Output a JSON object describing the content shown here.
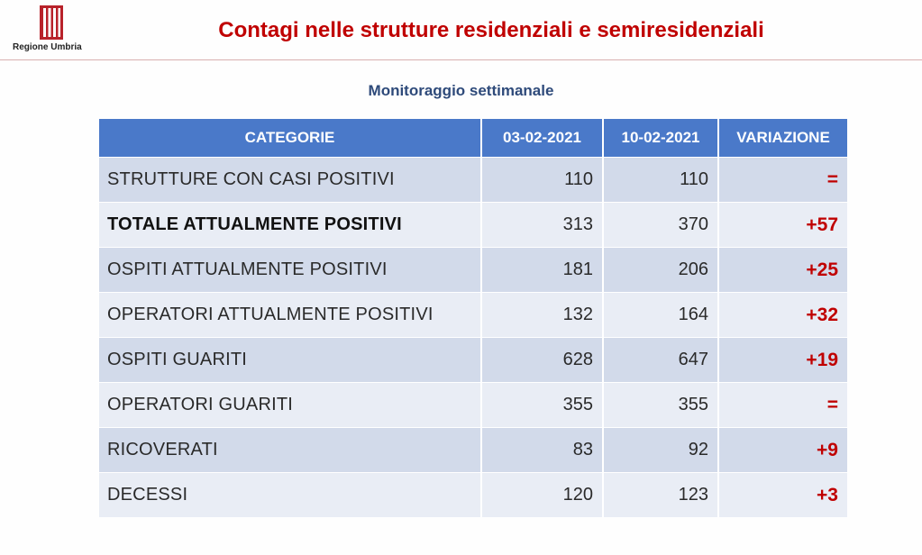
{
  "header": {
    "logo_text": "Regione Umbria",
    "title": "Contagi nelle strutture residenziali e semiresidenziali",
    "subtitle": "Monitoraggio settimanale"
  },
  "colors": {
    "title": "#c00000",
    "header_bg": "#4a79c9",
    "row_dark": "#d2daea",
    "row_light": "#e9edf5",
    "variation": "#c00000",
    "subtitle": "#2e4a7a"
  },
  "table": {
    "columns": [
      "CATEGORIE",
      "03-02-2021",
      "10-02-2021",
      "VARIAZIONE"
    ],
    "rows": [
      {
        "category": "STRUTTURE CON CASI POSITIVI",
        "d1": "110",
        "d2": "110",
        "variation": "="
      },
      {
        "category": "TOTALE ATTUALMENTE POSITIVI",
        "d1": "313",
        "d2": "370",
        "variation": "+57"
      },
      {
        "category": "OSPITI ATTUALMENTE POSITIVI",
        "d1": "181",
        "d2": "206",
        "variation": "+25"
      },
      {
        "category": "OPERATORI ATTUALMENTE POSITIVI",
        "d1": "132",
        "d2": "164",
        "variation": "+32"
      },
      {
        "category": "OSPITI GUARITI",
        "d1": "628",
        "d2": "647",
        "variation": "+19"
      },
      {
        "category": "OPERATORI GUARITI",
        "d1": "355",
        "d2": "355",
        "variation": "="
      },
      {
        "category": "RICOVERATI",
        "d1": "83",
        "d2": "92",
        "variation": "+9"
      },
      {
        "category": "DECESSI",
        "d1": "120",
        "d2": "123",
        "variation": "+3"
      }
    ]
  }
}
